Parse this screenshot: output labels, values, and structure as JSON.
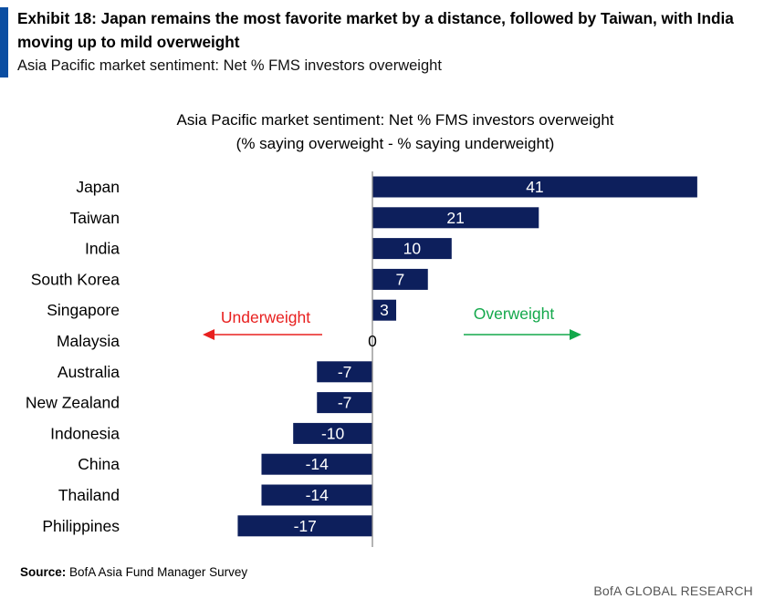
{
  "exhibit": {
    "title": "Exhibit 18: Japan remains the most favorite market by a distance, followed by Taiwan, with India moving up to mild overweight",
    "subtitle": "Asia Pacific market sentiment: Net % FMS investors overweight"
  },
  "chart_data": {
    "type": "bar",
    "orientation": "horizontal",
    "title": "Asia Pacific market sentiment: Net % FMS investors overweight",
    "subtitle": "(% saying overweight - % saying underweight)",
    "categories": [
      "Japan",
      "Taiwan",
      "India",
      "South Korea",
      "Singapore",
      "Malaysia",
      "Australia",
      "New Zealand",
      "Indonesia",
      "China",
      "Thailand",
      "Philippines"
    ],
    "values": [
      41,
      21,
      10,
      7,
      3,
      0,
      -7,
      -7,
      -10,
      -14,
      -14,
      -17
    ],
    "value_labels": [
      "41",
      "21",
      "10",
      "7",
      "3",
      "0",
      "-7",
      "-7",
      "-10",
      "-14",
      "-14",
      "-17"
    ],
    "bar_color": "#0d1f5c",
    "xlim": [
      -17,
      41
    ],
    "grid": false,
    "annotations": {
      "underweight": {
        "text": "Underweight",
        "color": "#e8201f"
      },
      "overweight": {
        "text": "Overweight",
        "color": "#13a84b"
      }
    }
  },
  "source": {
    "label": "Source:",
    "text": "BofA Asia Fund Manager Survey"
  },
  "footer": {
    "brand": "BofA GLOBAL RESEARCH"
  }
}
